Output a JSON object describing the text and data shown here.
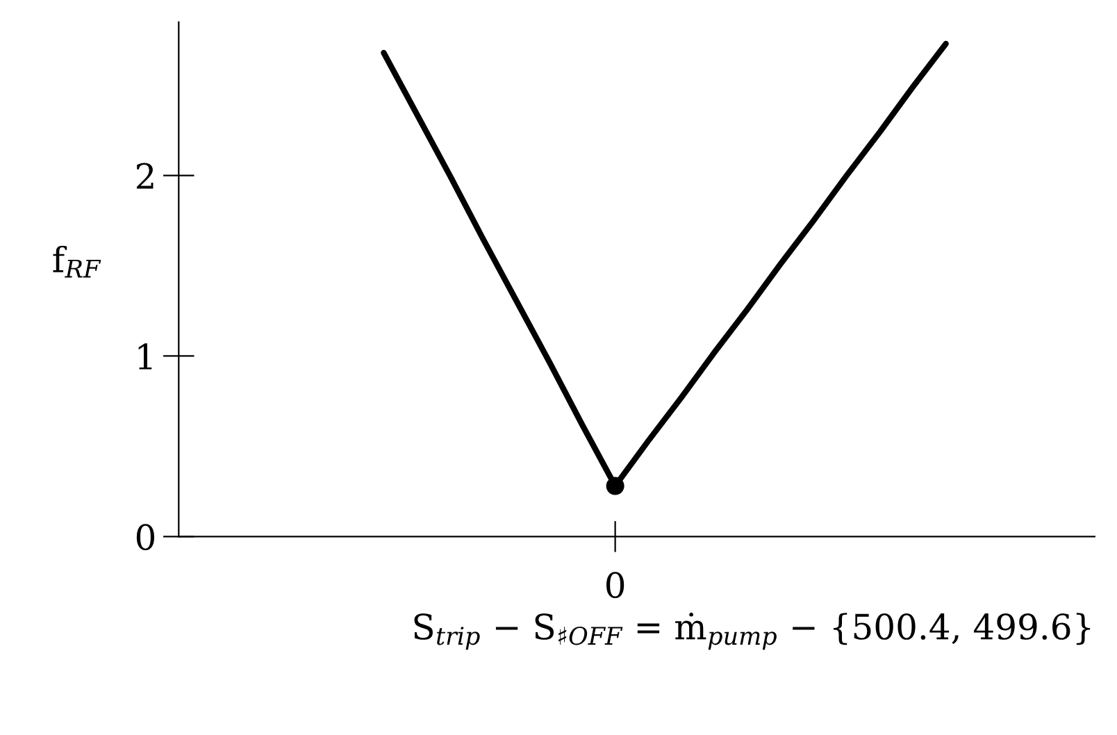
{
  "chart_data": {
    "type": "line",
    "xlabel": "S$_{trip}$ − S$_{♯OFF}$ = ṁ$_{pump}$ − {500.4, 499.6}",
    "ylabel": "f$_{RF}$",
    "categories": [
      null,
      null,
      null,
      null,
      null,
      null,
      null,
      "0",
      null,
      null,
      null,
      null,
      null,
      null,
      null,
      null,
      null,
      null
    ],
    "series": [
      {
        "color": "#000000",
        "values": [
          2.68,
          2.34,
          2.0,
          1.65,
          1.31,
          0.97,
          0.62,
          0.28,
          0.53,
          0.77,
          1.02,
          1.26,
          1.51,
          1.75,
          2.0,
          2.24,
          2.49,
          2.73
        ]
      },
      {
        "type": "scatter",
        "color": "#000000",
        "values": [
          null,
          null,
          null,
          null,
          null,
          null,
          null,
          0.28,
          null,
          null,
          null,
          null,
          null,
          null,
          null,
          null,
          null,
          null
        ],
        "marker": "circle"
      }
    ],
    "ylim": [
      0,
      2.85
    ],
    "yticks": [
      0,
      1,
      2
    ]
  }
}
